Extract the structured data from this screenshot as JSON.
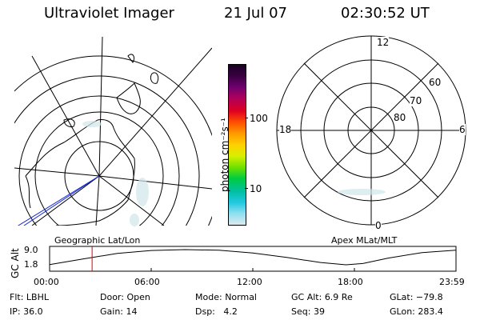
{
  "header": {
    "title": "Ultraviolet Imager",
    "date": "21 Jul 07",
    "time": "02:30:52 UT"
  },
  "left_map": {
    "name": "Geographic Lat/Lon"
  },
  "color_bar": {
    "unit_label": "photon cm⁻²s⁻¹",
    "tick_labels": [
      "100",
      "10"
    ],
    "colors": [
      "#1a0026",
      "#3a0040",
      "#700070",
      "#b0005a",
      "#e00020",
      "#ff5000",
      "#ff9a00",
      "#ffd000",
      "#d8f000",
      "#70e000",
      "#00cc40",
      "#00c0a0",
      "#20c8e0",
      "#90e0f0",
      "#dde8ee"
    ]
  },
  "right_map": {
    "name": "Apex MLat/MLT",
    "mlt_labels": {
      "top": "12",
      "left": "18",
      "right": "6",
      "bottom": "0"
    },
    "lat_labels": [
      "60",
      "70",
      "80"
    ]
  },
  "altitude_plot": {
    "ylabel": "GC Alt",
    "ytick_labels": [
      "9.0",
      "1.8"
    ],
    "xtick_labels": [
      "00:00",
      "06:00",
      "12:00",
      "18:00",
      "23:59"
    ]
  },
  "chart_data": {
    "type": "line",
    "title": "",
    "xlabel": "",
    "ylabel": "GC Alt",
    "xlim": [
      0,
      24
    ],
    "ylim": [
      1.8,
      9.0
    ],
    "series": [
      {
        "x": [
          0,
          2,
          4,
          6,
          8,
          10,
          12,
          14,
          16,
          17.5,
          18.5,
          20,
          22,
          23.98
        ],
        "values": [
          1.9,
          4.6,
          7.2,
          8.6,
          9.0,
          8.7,
          7.4,
          5.3,
          2.9,
          1.8,
          2.4,
          5.0,
          7.6,
          8.7
        ]
      }
    ],
    "marker_time": 2.51,
    "marker_color": "#e00000"
  },
  "status": {
    "row1": [
      {
        "key": "Flt:",
        "value": "LBHL"
      },
      {
        "key": "Door:",
        "value": "Open"
      },
      {
        "key": "Mode:",
        "value": "Normal"
      },
      {
        "key": "GC Alt:",
        "value": "6.9 Re"
      },
      {
        "key": "GLat:",
        "value": "−79.8"
      }
    ],
    "row2": [
      {
        "key": "IP:",
        "value": "36.0"
      },
      {
        "key": "Gain:",
        "value": "14"
      },
      {
        "key": "Dsp:",
        "value": "4.2"
      },
      {
        "key": "Seq:",
        "value": "39"
      },
      {
        "key": "GLon:",
        "value": "283.4"
      }
    ]
  }
}
